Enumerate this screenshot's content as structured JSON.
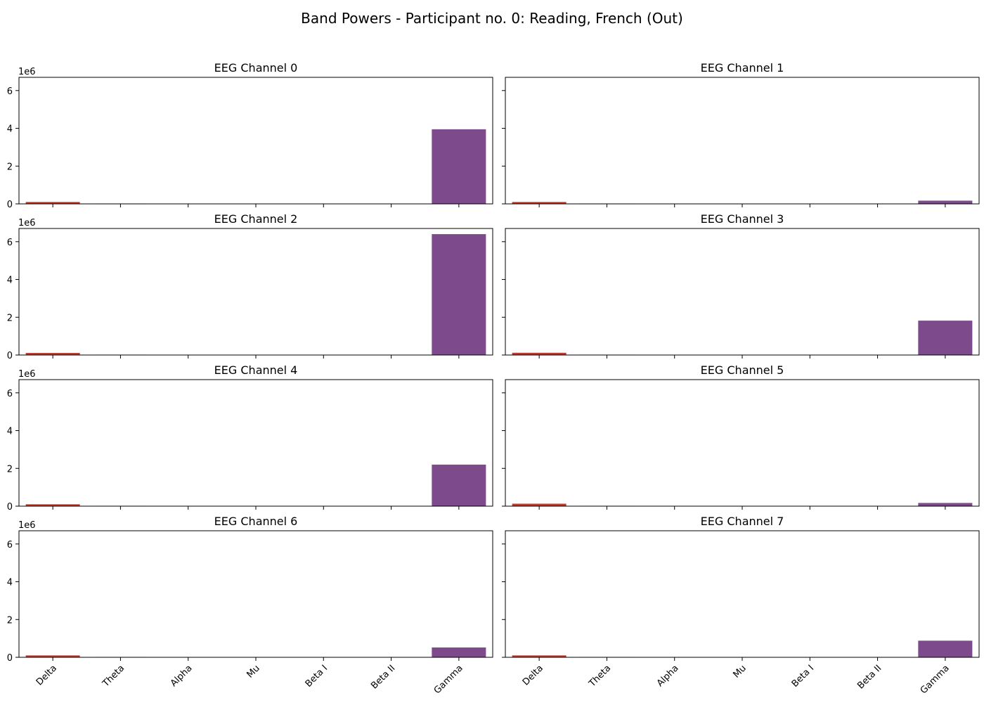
{
  "suptitle": "Band Powers - Participant no. 0: Reading, French (Out)",
  "chart_data": {
    "type": "bar",
    "layout": "4x2 grid of subplots, shared y-axis",
    "categories": [
      "Delta",
      "Theta",
      "Alpha",
      "Mu",
      "Beta I",
      "Beta II",
      "Gamma"
    ],
    "colors": [
      "#c0392b",
      "#d4ac0d",
      "#27ae60",
      "#2980b9",
      "#16a085",
      "#e67e22",
      "#7d4a8c"
    ],
    "ylim": [
      0,
      6700000
    ],
    "yticks": [
      0,
      2,
      4,
      6
    ],
    "yscale_label": "1e6",
    "grid": false,
    "panels": [
      {
        "title": "EEG Channel 0",
        "values": [
          100000,
          20000,
          0,
          0,
          0,
          0,
          3950000
        ]
      },
      {
        "title": "EEG Channel 1",
        "values": [
          100000,
          20000,
          0,
          0,
          0,
          0,
          170000
        ]
      },
      {
        "title": "EEG Channel 2",
        "values": [
          110000,
          20000,
          0,
          0,
          0,
          0,
          6400000
        ]
      },
      {
        "title": "EEG Channel 3",
        "values": [
          120000,
          20000,
          0,
          0,
          0,
          0,
          1820000
        ]
      },
      {
        "title": "EEG Channel 4",
        "values": [
          100000,
          20000,
          0,
          0,
          0,
          0,
          2200000
        ]
      },
      {
        "title": "EEG Channel 5",
        "values": [
          130000,
          20000,
          0,
          0,
          0,
          0,
          170000
        ]
      },
      {
        "title": "EEG Channel 6",
        "values": [
          100000,
          20000,
          0,
          0,
          0,
          0,
          520000
        ]
      },
      {
        "title": "EEG Channel 7",
        "values": [
          100000,
          20000,
          0,
          0,
          0,
          0,
          880000
        ]
      }
    ]
  }
}
